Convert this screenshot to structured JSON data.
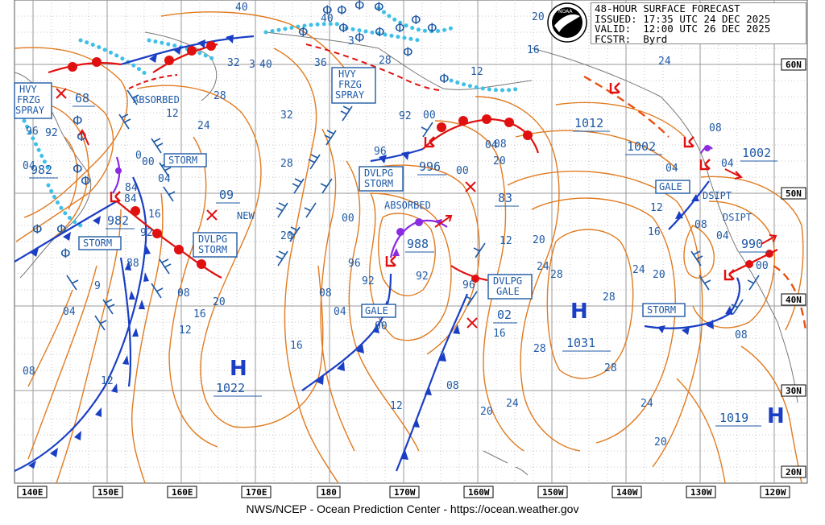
{
  "header": {
    "title": "48-HOUR SURFACE FORECAST",
    "issued": "ISSUED: 17:35 UTC 24 DEC 2025",
    "valid": "VALID:  12:00 UTC 26 DEC 2025",
    "forecaster": "FCSTR:  Byrd"
  },
  "logo_text": "NOAA",
  "credit": "NWS/NCEP - Ocean Prediction Center - https://ocean.weather.gov",
  "longitude_labels": [
    "140E",
    "150E",
    "160E",
    "170E",
    "180",
    "170W",
    "160W",
    "150W",
    "140W",
    "130W",
    "120W"
  ],
  "latitude_labels": [
    "60N",
    "50N",
    "40N",
    "30N",
    "20N"
  ],
  "pressure_centers": [
    {
      "type": "H",
      "value": "1022"
    },
    {
      "type": "H",
      "value": "1031"
    },
    {
      "type": "H",
      "value": "1019"
    },
    {
      "type": "L",
      "value": "982"
    },
    {
      "type": "L",
      "value": "982"
    },
    {
      "type": "L",
      "value": "996"
    },
    {
      "type": "L",
      "value": "988"
    },
    {
      "type": "L",
      "value": "1002"
    },
    {
      "type": "L",
      "value": "990"
    },
    {
      "type": "L",
      "value": "1012"
    },
    {
      "type": "L",
      "value": "1002"
    }
  ],
  "annotations": {
    "hvy_frzg_spray_left": [
      "HVY",
      "FRZG",
      "SPRAY"
    ],
    "hvy_frzg_spray_mid": [
      "HVY",
      "FRZG",
      "SPRAY"
    ],
    "absorbed_left": "ABSORBED",
    "absorbed_mid": "ABSORBED",
    "storm_1": "STORM",
    "storm_2": "STORM",
    "storm_3": "STORM",
    "storm_4": "STORM",
    "dvlpg_storm_1": [
      "DVLPG",
      "STORM"
    ],
    "dvlpg_storm_2": [
      "DVLPG",
      "STORM"
    ],
    "dvlpg_gale": [
      "DVLPG",
      "GALE"
    ],
    "gale_1": "GALE",
    "gale_2": "GALE",
    "dsipt_1": "DSIPT",
    "dsipt_2": "DSIPT",
    "new": "NEW",
    "num_68": "68",
    "num_09": "09",
    "num_83": "83",
    "num_02": "02"
  },
  "isobar_labels": [
    "40",
    "32",
    "3",
    "40",
    "36",
    "28",
    "3",
    "28",
    "24",
    "32",
    "28",
    "20",
    "16",
    "12",
    "08",
    "04",
    "00",
    "96",
    "92",
    "88",
    "84",
    "12",
    "20",
    "16",
    "12",
    "08",
    "04",
    "00",
    "96",
    "92",
    "16",
    "08",
    "04",
    "00",
    "96",
    "92",
    "12",
    "16",
    "20",
    "24",
    "28",
    "20",
    "24",
    "28",
    "24",
    "20",
    "16",
    "08",
    "04",
    "00",
    "96",
    "92",
    "12",
    "16",
    "20",
    "24",
    "28",
    "08",
    "04"
  ]
}
